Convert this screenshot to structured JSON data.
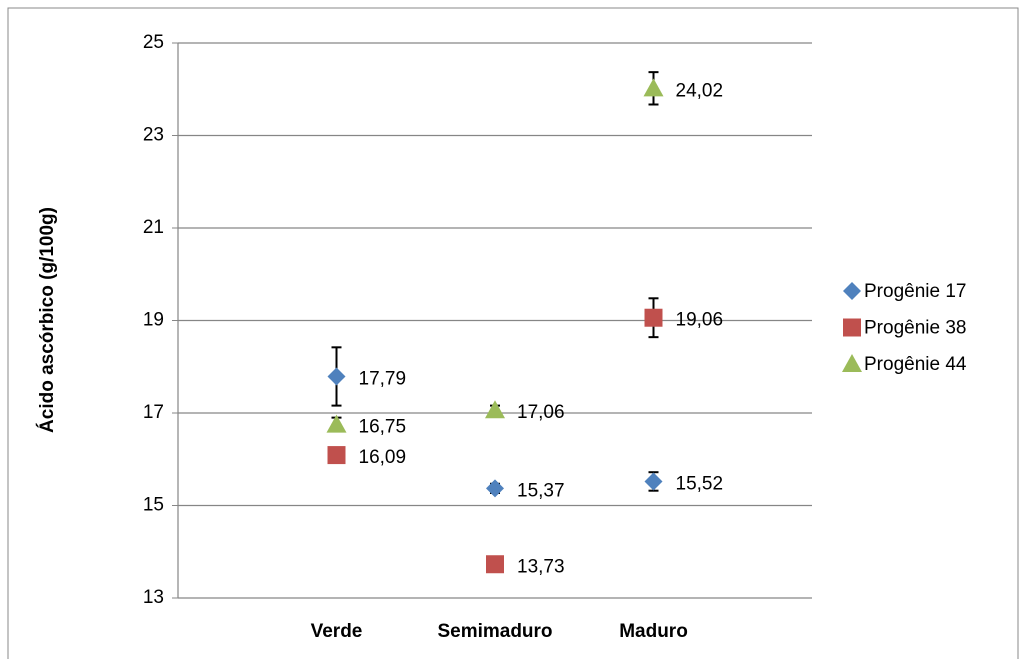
{
  "chart_data": {
    "type": "scatter",
    "y_label": "Ácido ascórbico (g/100g)",
    "categories": [
      "Verde",
      "Semimaduro",
      "Maduro"
    ],
    "ylim": [
      13,
      25
    ],
    "yticks": [
      13,
      15,
      17,
      19,
      21,
      23,
      25
    ],
    "grid": true,
    "legend": "right",
    "series": [
      {
        "name": "Progênie 17",
        "color": "#4f81bd",
        "marker": "diamond",
        "values": [
          17.79,
          15.37,
          15.52
        ],
        "value_labels": [
          "17,79",
          "15,37",
          "15,52"
        ],
        "errors": [
          0.63,
          0.1,
          0.2
        ]
      },
      {
        "name": "Progênie 38",
        "color": "#c0504d",
        "marker": "square",
        "values": [
          16.09,
          13.73,
          19.06
        ],
        "value_labels": [
          "16,09",
          "13,73",
          "19,06"
        ],
        "errors": [
          null,
          null,
          0.42
        ]
      },
      {
        "name": "Progênie 44",
        "color": "#9bbb59",
        "marker": "triangle",
        "values": [
          16.75,
          17.06,
          24.02
        ],
        "value_labels": [
          "16,75",
          "17,06",
          "24,02"
        ],
        "errors": [
          0.15,
          0.1,
          0.35
        ]
      }
    ]
  }
}
